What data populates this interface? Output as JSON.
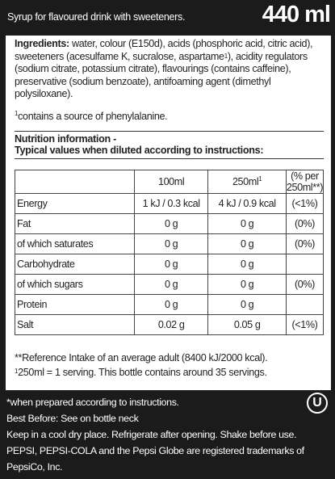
{
  "header": {
    "description": "Syrup for flavoured drink with sweeteners.",
    "volume": "440 ml"
  },
  "ingredients": {
    "label": "Ingredients:",
    "text_part1": " water, colour (E150d), acids (phosphoric acid, citric acid), sweeteners (acesulfame K, sucralose, aspartame",
    "text_sup": "1",
    "text_part2": "), acidity regulators (sodium citrate, potassium citrate), flavourings (contains caffeine), preservative (sodium benzoate), antifoaming agent (dimethyl polysiloxane).",
    "footnote_sup": "1",
    "footnote": "contains a source of phenylalanine."
  },
  "nutrition": {
    "title": "Nutrition information -",
    "subtitle": "Typical values when diluted according to instructions:",
    "headers": {
      "per100": "100ml",
      "per250": "250ml",
      "per250_sup": "1",
      "ri": "(% per 250ml**)"
    },
    "rows": [
      {
        "label": "Energy",
        "v100": "1 kJ / 0.3 kcal",
        "v250": "4 kJ / 0.9 kcal",
        "ri": "(<1%)"
      },
      {
        "label": "Fat",
        "v100": "0 g",
        "v250": "0 g",
        "ri": "(0%)"
      },
      {
        "label": "of which saturates",
        "v100": "0 g",
        "v250": "0 g",
        "ri": "(0%)"
      },
      {
        "label": "Carbohydrate",
        "v100": "0 g",
        "v250": "0 g",
        "ri": ""
      },
      {
        "label": "of which sugars",
        "v100": "0 g",
        "v250": "0 g",
        "ri": "(0%)"
      },
      {
        "label": "Protein",
        "v100": "0 g",
        "v250": "0 g",
        "ri": ""
      },
      {
        "label": "Salt",
        "v100": "0.02 g",
        "v250": "0.05 g",
        "ri": "(<1%)"
      }
    ],
    "note1": "**Reference Intake of an average adult (8400 kJ/2000 kcal).",
    "note2_sup": "1",
    "note2": "250ml = 1 serving. This bottle contains around 35 servings."
  },
  "footer": {
    "line1": "*when prepared according to instructions.",
    "line2": "Best Before: See on bottle neck",
    "line3": "Keep in a cool dry place. Refrigerate after opening. Shake before use.",
    "line4": "PEPSI, PEPSI-COLA and the Pepsi Globe are registered trademarks of PepsiCo, Inc.",
    "kosher_mark": "U"
  }
}
